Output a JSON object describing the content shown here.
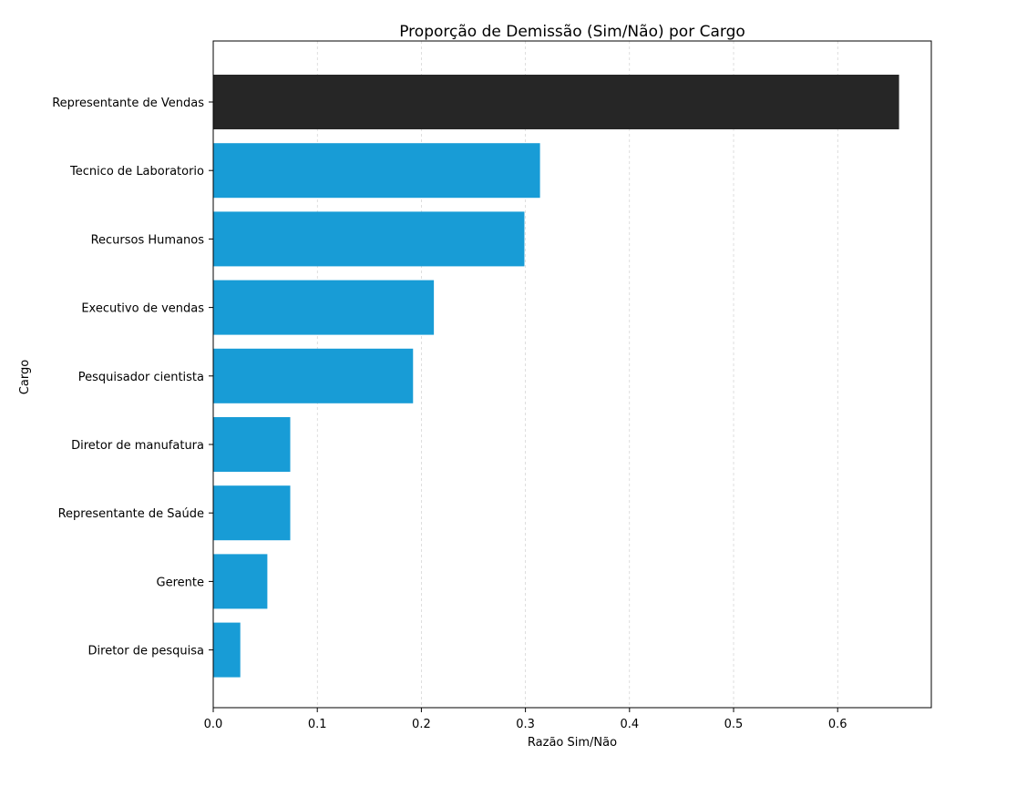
{
  "chart_data": {
    "type": "bar",
    "orientation": "horizontal",
    "title": "Proporção de Demissão (Sim/Não) por Cargo",
    "xlabel": "Razão Sim/Não",
    "ylabel": "Cargo",
    "xlim": [
      0,
      0.69
    ],
    "xticks": [
      0.0,
      0.1,
      0.2,
      0.3,
      0.4,
      0.5,
      0.6
    ],
    "xtick_labels": [
      "0.0",
      "0.1",
      "0.2",
      "0.3",
      "0.4",
      "0.5",
      "0.6"
    ],
    "grid": "vertical dashed",
    "categories": [
      "Representante de Vendas",
      "Tecnico de Laboratorio",
      "Recursos Humanos",
      "Executivo de vendas",
      "Pesquisador cientista",
      "Diretor de manufatura",
      "Representante de Saúde",
      "Gerente",
      "Diretor de pesquisa"
    ],
    "values": [
      0.659,
      0.314,
      0.299,
      0.212,
      0.192,
      0.074,
      0.074,
      0.052,
      0.026
    ],
    "colors": [
      "#262626",
      "#189cd6",
      "#189cd6",
      "#189cd6",
      "#189cd6",
      "#189cd6",
      "#189cd6",
      "#189cd6",
      "#189cd6"
    ],
    "highlight_color": "#262626",
    "bar_color": "#189cd6"
  }
}
